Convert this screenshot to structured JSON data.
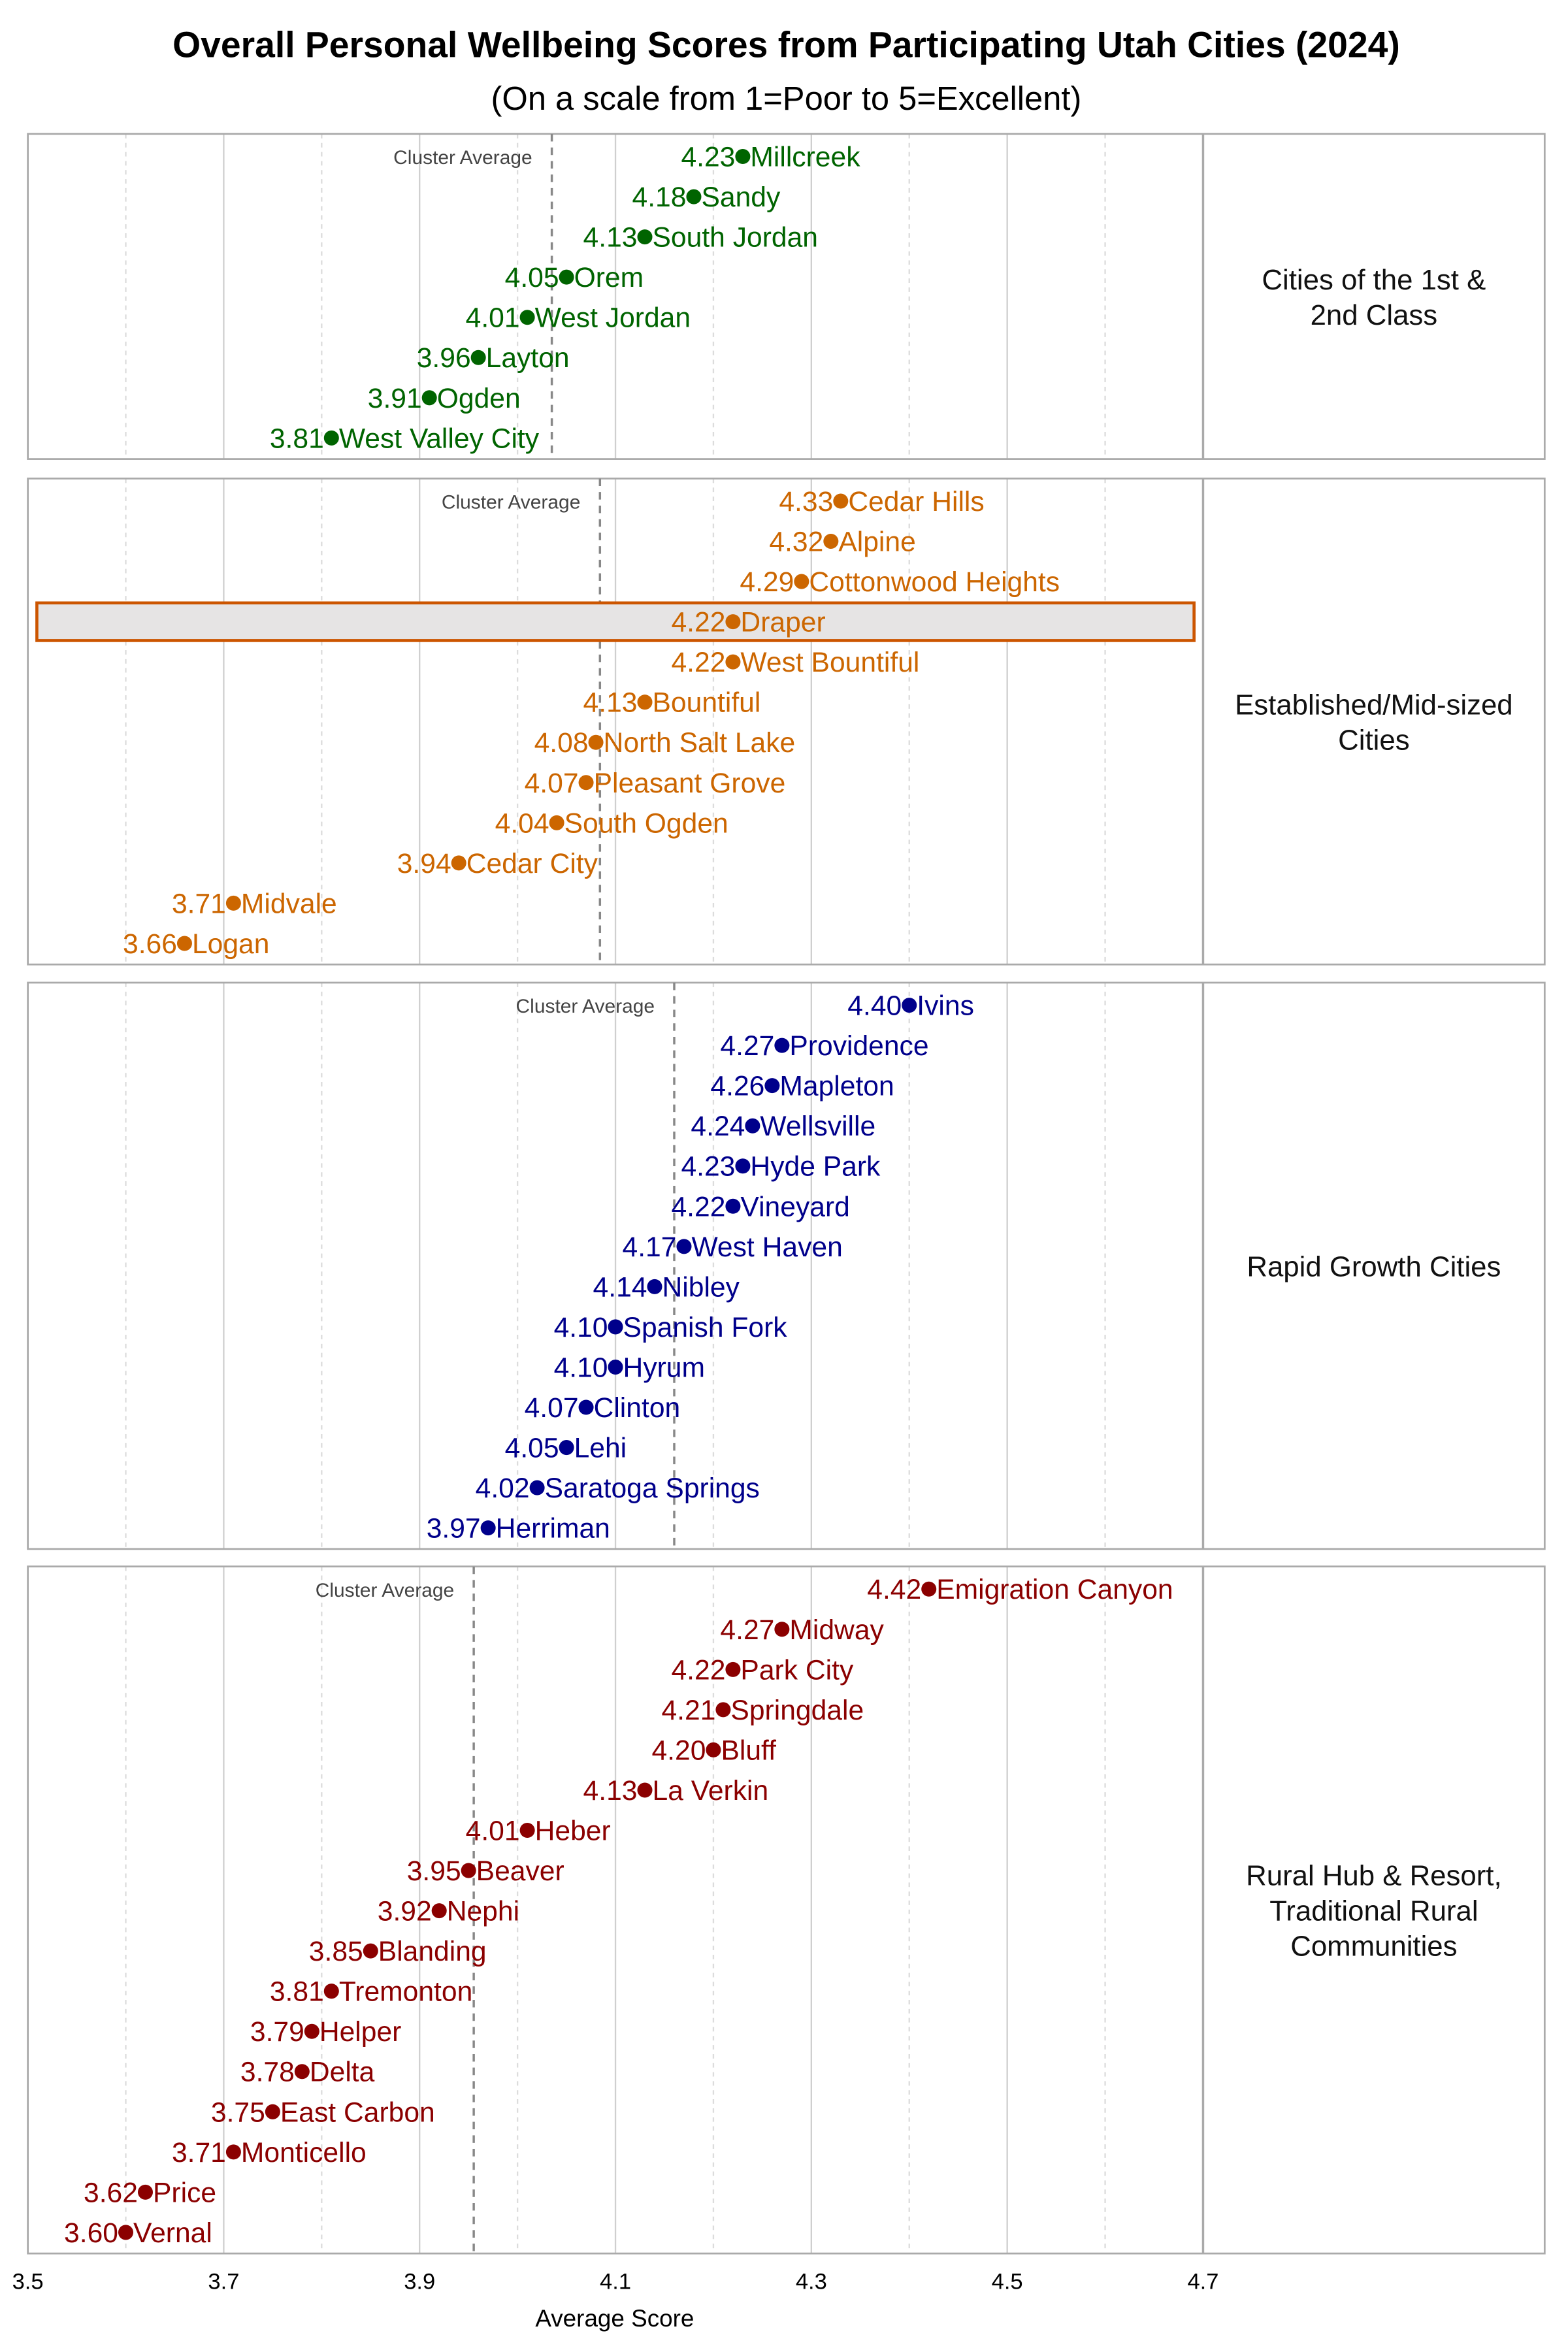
{
  "chart_data": {
    "type": "scatter",
    "title": "Overall Personal Wellbeing Scores from Participating Utah Cities (2024)",
    "subtitle": "(On a scale from 1=Poor to 5=Excellent)",
    "xlabel": "Average Score",
    "xlim": [
      3.5,
      4.7
    ],
    "xticks": [
      3.5,
      3.7,
      3.9,
      4.1,
      4.3,
      4.5,
      4.7
    ],
    "grid": true,
    "average_line_label": "Cluster Average",
    "highlight": "Draper",
    "highlight_colors": {
      "fill": "#e6e4e4",
      "stroke": "#cc5500"
    },
    "panels": [
      {
        "name": "Cities of the 1st & 2nd Class",
        "color": "#006400",
        "cities": [
          "Millcreek",
          "Sandy",
          "South Jordan",
          "Orem",
          "West Jordan",
          "Layton",
          "Ogden",
          "West Valley City"
        ],
        "values": [
          4.23,
          4.18,
          4.13,
          4.05,
          4.01,
          3.96,
          3.91,
          3.81
        ]
      },
      {
        "name": "Established/Mid-sized Cities",
        "color": "#cc6600",
        "cities": [
          "Cedar Hills",
          "Alpine",
          "Cottonwood Heights",
          "Draper",
          "West Bountiful",
          "Bountiful",
          "North Salt Lake",
          "Pleasant Grove",
          "South Ogden",
          "Cedar City",
          "Midvale",
          "Logan"
        ],
        "values": [
          4.33,
          4.32,
          4.29,
          4.22,
          4.22,
          4.13,
          4.08,
          4.07,
          4.04,
          3.94,
          3.71,
          3.66
        ]
      },
      {
        "name": "Rapid Growth Cities",
        "color": "#00008b",
        "cities": [
          "Ivins",
          "Providence",
          "Mapleton",
          "Wellsville",
          "Hyde Park",
          "Vineyard",
          "West Haven",
          "Nibley",
          "Spanish Fork",
          "Hyrum",
          "Clinton",
          "Lehi",
          "Saratoga Springs",
          "Herriman"
        ],
        "values": [
          4.4,
          4.27,
          4.26,
          4.24,
          4.23,
          4.22,
          4.17,
          4.14,
          4.1,
          4.1,
          4.07,
          4.05,
          4.02,
          3.97
        ]
      },
      {
        "name": "Rural Hub & Resort, Traditional Rural Communities",
        "color": "#8b0000",
        "cities": [
          "Emigration Canyon",
          "Midway",
          "Park City",
          "Springdale",
          "Bluff",
          "La Verkin",
          "Heber",
          "Beaver",
          "Nephi",
          "Blanding",
          "Tremonton",
          "Helper",
          "Delta",
          "East Carbon",
          "Monticello",
          "Price",
          "Vernal"
        ],
        "values": [
          4.42,
          4.27,
          4.22,
          4.21,
          4.2,
          4.13,
          4.01,
          3.95,
          3.92,
          3.85,
          3.81,
          3.79,
          3.78,
          3.75,
          3.71,
          3.62,
          3.6
        ]
      }
    ]
  }
}
